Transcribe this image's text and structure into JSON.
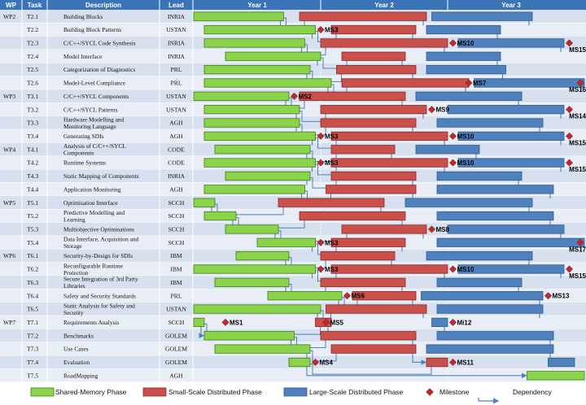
{
  "header": {
    "wp": "WP",
    "task": "Task",
    "description": "Description",
    "lead": "Lead",
    "years": [
      "Year 1",
      "Year 2",
      "Year 3"
    ]
  },
  "colors": {
    "header_bg": "#3a74b6",
    "row_a": "#d6e0ee",
    "row_b": "#e9eef6",
    "shared": "#8bd34a",
    "small": "#c9504b",
    "large": "#4f81bd",
    "milestone": "#c0282d",
    "dependency": "#4f81bd"
  },
  "timeline_months": 36,
  "rows": [
    {
      "wp": "WP2",
      "task": "T2.1",
      "desc": [
        "Building Blocks"
      ],
      "lead": "INRIA",
      "bars": [
        {
          "p": "shared",
          "s": 0,
          "e": 8.5
        },
        {
          "p": "small",
          "s": 10,
          "e": 22
        },
        {
          "p": "large",
          "s": 22.5,
          "e": 32
        }
      ],
      "ms": []
    },
    {
      "wp": "",
      "task": "T2.2",
      "desc": [
        "Building Block Patterns"
      ],
      "lead": "USTAN",
      "bars": [
        {
          "p": "shared",
          "s": 1,
          "e": 11.5
        },
        {
          "p": "small",
          "s": 13,
          "e": 21
        },
        {
          "p": "large",
          "s": 22,
          "e": 29
        }
      ],
      "ms": [
        {
          "label": "MS3",
          "at": 12
        }
      ]
    },
    {
      "wp": "",
      "task": "T2.3",
      "desc": [
        "C/C++/SYCL Code Synthesis"
      ],
      "lead": "INRIA",
      "bars": [
        {
          "p": "shared",
          "s": 1,
          "e": 10.5
        },
        {
          "p": "small",
          "s": 12,
          "e": 24
        },
        {
          "p": "large",
          "s": 25,
          "e": 35
        }
      ],
      "ms": [
        {
          "label": "MS10",
          "at": 24.5
        },
        {
          "label": "MS15",
          "at": 35.5
        }
      ]
    },
    {
      "wp": "",
      "task": "T2.4",
      "desc": [
        "Model Interface"
      ],
      "lead": "INRIA",
      "bars": [
        {
          "p": "shared",
          "s": 3,
          "e": 12
        },
        {
          "p": "small",
          "s": 14,
          "e": 20
        },
        {
          "p": "large",
          "s": 22,
          "e": 29
        }
      ],
      "ms": []
    },
    {
      "wp": "",
      "task": "T2.5",
      "desc": [
        "Categorization of Diagnostics"
      ],
      "lead": "PRL",
      "bars": [
        {
          "p": "shared",
          "s": 1,
          "e": 11
        },
        {
          "p": "small",
          "s": 13.5,
          "e": 21
        },
        {
          "p": "large",
          "s": 22,
          "e": 29.5
        }
      ],
      "ms": []
    },
    {
      "wp": "",
      "task": "T2.6",
      "desc": [
        "Model-Level Compliance"
      ],
      "lead": "PRL",
      "bars": [
        {
          "p": "shared",
          "s": 1,
          "e": 13
        },
        {
          "p": "small",
          "s": 14,
          "e": 26
        },
        {
          "p": "large",
          "s": 26.5,
          "e": 38
        }
      ],
      "ms": [
        {
          "label": "MS7",
          "at": 26
        },
        {
          "label": "MS16",
          "at": 38
        }
      ]
    },
    {
      "wp": "WP3",
      "task": "T3.1",
      "desc": [
        "C/C++/SYCL Components"
      ],
      "lead": "USTAN",
      "bars": [
        {
          "p": "shared",
          "s": 0,
          "e": 9
        },
        {
          "p": "small",
          "s": 10,
          "e": 20
        },
        {
          "p": "large",
          "s": 21,
          "e": 31
        }
      ],
      "ms": [
        {
          "label": "MS2",
          "at": 9.5
        }
      ]
    },
    {
      "wp": "",
      "task": "T3.2",
      "desc": [
        "C/C++/SYCL Patterns"
      ],
      "lead": "USTAN",
      "bars": [
        {
          "p": "shared",
          "s": 1,
          "e": 10
        },
        {
          "p": "small",
          "s": 12,
          "e": 22
        },
        {
          "p": "large",
          "s": 24,
          "e": 35
        }
      ],
      "ms": [
        {
          "label": "MS9",
          "at": 22.5
        },
        {
          "label": "MS14",
          "at": 35.5
        }
      ]
    },
    {
      "wp": "",
      "task": "T3.3",
      "desc": [
        "Hardware Modelling and",
        "Monitoring Language"
      ],
      "lead": "AGH",
      "bars": [
        {
          "p": "shared",
          "s": 1,
          "e": 10
        },
        {
          "p": "small",
          "s": 12,
          "e": 21
        },
        {
          "p": "large",
          "s": 23,
          "e": 33
        }
      ],
      "ms": []
    },
    {
      "wp": "",
      "task": "T3.4",
      "desc": [
        "Generating SDIs"
      ],
      "lead": "AGH",
      "bars": [
        {
          "p": "shared",
          "s": 1,
          "e": 11.5
        },
        {
          "p": "small",
          "s": 13,
          "e": 24
        },
        {
          "p": "large",
          "s": 25,
          "e": 35
        }
      ],
      "ms": [
        {
          "label": "MS3",
          "at": 12
        },
        {
          "label": "MS10",
          "at": 24.5
        },
        {
          "label": "MS15",
          "at": 35.5
        }
      ]
    },
    {
      "wp": "WP4",
      "task": "T4.1",
      "desc": [
        "Analysis of C/C++/SYCL",
        "Components"
      ],
      "lead": "CODE",
      "bars": [
        {
          "p": "shared",
          "s": 2,
          "e": 11
        },
        {
          "p": "small",
          "s": 13,
          "e": 19
        },
        {
          "p": "large",
          "s": 21,
          "e": 27
        }
      ],
      "ms": []
    },
    {
      "wp": "",
      "task": "T4.2",
      "desc": [
        "Runtime Systems"
      ],
      "lead": "CODE",
      "bars": [
        {
          "p": "shared",
          "s": 1,
          "e": 11.5
        },
        {
          "p": "small",
          "s": 13,
          "e": 24
        },
        {
          "p": "large",
          "s": 25,
          "e": 35
        }
      ],
      "ms": [
        {
          "label": "MS3",
          "at": 12
        },
        {
          "label": "MS10",
          "at": 24.5
        },
        {
          "label": "MS15",
          "at": 35.5
        }
      ]
    },
    {
      "wp": "",
      "task": "T4.3",
      "desc": [
        "Static Mapping of Components"
      ],
      "lead": "INRIA",
      "bars": [
        {
          "p": "shared",
          "s": 3,
          "e": 11
        },
        {
          "p": "small",
          "s": 13,
          "e": 21
        },
        {
          "p": "large",
          "s": 23,
          "e": 31
        }
      ],
      "ms": []
    },
    {
      "wp": "",
      "task": "T4.4",
      "desc": [
        "Application Monitoring"
      ],
      "lead": "AGH",
      "bars": [
        {
          "p": "shared",
          "s": 1,
          "e": 10.5
        },
        {
          "p": "small",
          "s": 12.5,
          "e": 21
        },
        {
          "p": "large",
          "s": 23,
          "e": 34
        }
      ],
      "ms": []
    },
    {
      "wp": "WP5",
      "task": "T5.1",
      "desc": [
        "Optimisation Interface"
      ],
      "lead": "SCCH",
      "bars": [
        {
          "p": "shared",
          "s": 0,
          "e": 2
        },
        {
          "p": "small",
          "s": 8,
          "e": 18
        },
        {
          "p": "large",
          "s": 20,
          "e": 32
        }
      ],
      "ms": []
    },
    {
      "wp": "",
      "task": "T5.2",
      "desc": [
        "Predictive Modelling and",
        "Learning"
      ],
      "lead": "SCCH",
      "bars": [
        {
          "p": "shared",
          "s": 1,
          "e": 4
        },
        {
          "p": "small",
          "s": 10,
          "e": 20
        },
        {
          "p": "large",
          "s": 23,
          "e": 34
        }
      ],
      "ms": []
    },
    {
      "wp": "",
      "task": "T5.3",
      "desc": [
        "Multiobjective Optimisations"
      ],
      "lead": "SCCH",
      "bars": [
        {
          "p": "shared",
          "s": 3,
          "e": 8
        },
        {
          "p": "small",
          "s": 14,
          "e": 22
        },
        {
          "p": "large",
          "s": 24,
          "e": 35
        }
      ],
      "ms": [
        {
          "label": "MS8",
          "at": 22.5
        }
      ]
    },
    {
      "wp": "",
      "task": "T5.4",
      "desc": [
        "Data Interface, Acquisition and",
        "Storage"
      ],
      "lead": "SCCH",
      "bars": [
        {
          "p": "shared",
          "s": 6,
          "e": 11.5
        },
        {
          "p": "small",
          "s": 13,
          "e": 20
        },
        {
          "p": "large",
          "s": 23,
          "e": 37
        }
      ],
      "ms": [
        {
          "label": "MS3",
          "at": 12
        },
        {
          "label": "MS17",
          "at": 37.5
        }
      ]
    },
    {
      "wp": "WP6",
      "task": "T6.1",
      "desc": [
        "Security-by-Design for SDIs"
      ],
      "lead": "IBM",
      "bars": [
        {
          "p": "shared",
          "s": 4,
          "e": 9
        },
        {
          "p": "small",
          "s": 12,
          "e": 19
        },
        {
          "p": "large",
          "s": 22,
          "e": 32
        }
      ],
      "ms": []
    },
    {
      "wp": "",
      "task": "T6.2",
      "desc": [
        "Reconfigurable Runtime",
        "Protection"
      ],
      "lead": "IBM",
      "bars": [
        {
          "p": "shared",
          "s": 0,
          "e": 11.5
        },
        {
          "p": "small",
          "s": 13,
          "e": 24
        },
        {
          "p": "large",
          "s": 25,
          "e": 35
        }
      ],
      "ms": [
        {
          "label": "MS3",
          "at": 12
        },
        {
          "label": "MS10",
          "at": 24.5
        },
        {
          "label": "MS15",
          "at": 35.5
        }
      ]
    },
    {
      "wp": "",
      "task": "T6.3",
      "desc": [
        "Secure Integration of 3rd Party",
        "Libraries"
      ],
      "lead": "IBM",
      "bars": [
        {
          "p": "shared",
          "s": 2,
          "e": 9
        },
        {
          "p": "small",
          "s": 12,
          "e": 20
        },
        {
          "p": "large",
          "s": 23,
          "e": 31
        }
      ],
      "ms": []
    },
    {
      "wp": "",
      "task": "T6.4",
      "desc": [
        "Safety and Security Standards"
      ],
      "lead": "PRL",
      "bars": [
        {
          "p": "shared",
          "s": 7,
          "e": 14
        },
        {
          "p": "small",
          "s": 15,
          "e": 21
        },
        {
          "p": "large",
          "s": 21.5,
          "e": 33
        }
      ],
      "ms": [
        {
          "label": "MS6",
          "at": 14.5
        },
        {
          "label": "MS13",
          "at": 33.5
        }
      ]
    },
    {
      "wp": "",
      "task": "T6.5",
      "desc": [
        "Static Analysis for Safety and",
        "Security"
      ],
      "lead": "USTAN",
      "bars": [
        {
          "p": "shared",
          "s": 0,
          "e": 12
        },
        {
          "p": "small",
          "s": 12.5,
          "e": 22
        },
        {
          "p": "large",
          "s": 23,
          "e": 33
        }
      ],
      "ms": []
    },
    {
      "wp": "WP7",
      "task": "T7.1",
      "desc": [
        "Requirements Analysis"
      ],
      "lead": "SCCH",
      "bars": [
        {
          "p": "shared",
          "s": 0,
          "e": 1
        },
        {
          "p": "small",
          "s": 11.5,
          "e": 13
        },
        {
          "p": "large",
          "s": 22.5,
          "e": 24
        }
      ],
      "ms": [
        {
          "label": "MS1",
          "at": 3
        },
        {
          "label": "MS5",
          "at": 12.5
        },
        {
          "label": "Mi12",
          "at": 24.5
        }
      ]
    },
    {
      "wp": "",
      "task": "T7.2",
      "desc": [
        "Benchmarks"
      ],
      "lead": "GOLEM",
      "bars": [
        {
          "p": "shared",
          "s": 1,
          "e": 9.5
        },
        {
          "p": "small",
          "s": 12,
          "e": 21
        },
        {
          "p": "large",
          "s": 23,
          "e": 34
        }
      ],
      "ms": []
    },
    {
      "wp": "",
      "task": "T7.3",
      "desc": [
        "Use Cases"
      ],
      "lead": "GOLEM",
      "bars": [
        {
          "p": "shared",
          "s": 2,
          "e": 11
        },
        {
          "p": "small",
          "s": 13,
          "e": 21
        },
        {
          "p": "large",
          "s": 22,
          "e": 34
        }
      ],
      "ms": []
    },
    {
      "wp": "",
      "task": "T7.4",
      "desc": [
        "Evaluation"
      ],
      "lead": "GOLEM",
      "bars": [
        {
          "p": "shared",
          "s": 9,
          "e": 11
        },
        {
          "p": "small",
          "s": 22,
          "e": 24
        },
        {
          "p": "large",
          "s": 33.5,
          "e": 36
        }
      ],
      "ms": [
        {
          "label": "MS4",
          "at": 11.5
        },
        {
          "label": "MS11",
          "at": 24.5
        }
      ]
    },
    {
      "wp": "",
      "task": "T7.5",
      "desc": [
        "RoadMapping"
      ],
      "lead": "AGH",
      "bars": [
        {
          "p": "shared",
          "s": 31.5,
          "e": 37
        }
      ],
      "ms": []
    }
  ],
  "legend": {
    "shared": "Shared-Memory Phase",
    "small": "Small-Scale Distributed Phase",
    "large": "Large-Scale Distributed Phase",
    "milestone": "Milestone",
    "dependency": "Dependency"
  }
}
